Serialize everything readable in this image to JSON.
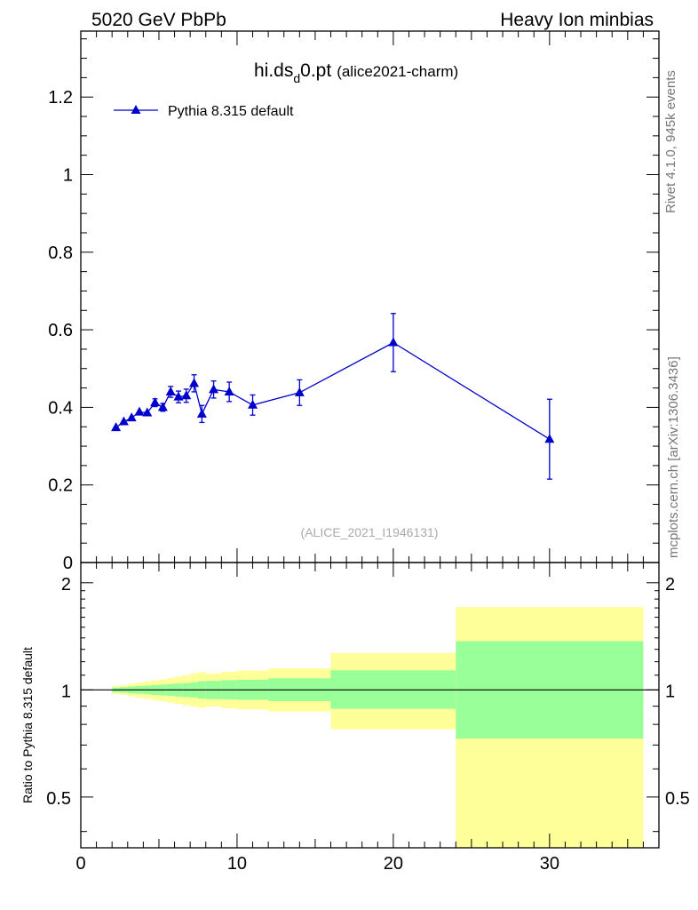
{
  "header": {
    "left": "5020 GeV PbPb",
    "right": "Heavy Ion minbias"
  },
  "side_labels": {
    "rivet": "Rivet 4.1.0,  945k events",
    "mcplots": "mcplots.cern.ch [arXiv:1306.3436]"
  },
  "plot_title": {
    "main_prefix": "hi.ds",
    "subscript": "d",
    "main_suffix": "0.pt",
    "tag": "(alice2021-charm)"
  },
  "watermark": "(ALICE_2021_I1946131)",
  "colors": {
    "series": "#0000cc",
    "band_outer": "#ffff99",
    "band_inner": "#99ff99"
  },
  "chart_data": [
    {
      "type": "line",
      "panel": "main",
      "title": "hi.ds_d0.pt (alice2021-charm)",
      "xlabel": "",
      "ylabel": "",
      "xlim": [
        0,
        37
      ],
      "ylim": [
        0,
        1.37
      ],
      "y_ticks": [
        0,
        0.2,
        0.4,
        0.6,
        0.8,
        1,
        1.2
      ],
      "y_tick_labels": [
        "0",
        "0.2",
        "0.4",
        "0.6",
        "0.8",
        "1",
        "1.2"
      ],
      "legend": "top-left",
      "series": [
        {
          "name": "Pythia 8.315 default",
          "marker": "triangle",
          "x": [
            2.25,
            2.75,
            3.25,
            3.75,
            4.25,
            4.75,
            5.25,
            5.75,
            6.25,
            6.75,
            7.25,
            7.75,
            8.5,
            9.5,
            11,
            14,
            20,
            30
          ],
          "y": [
            0.348,
            0.363,
            0.373,
            0.388,
            0.386,
            0.412,
            0.4,
            0.44,
            0.427,
            0.43,
            0.462,
            0.383,
            0.446,
            0.44,
            0.406,
            0.438,
            0.567,
            0.318
          ],
          "err": [
            0.006,
            0.006,
            0.007,
            0.008,
            0.009,
            0.01,
            0.01,
            0.014,
            0.015,
            0.017,
            0.022,
            0.022,
            0.022,
            0.025,
            0.026,
            0.033,
            0.075,
            0.103
          ]
        }
      ]
    },
    {
      "type": "area",
      "panel": "ratio",
      "ylabel": "Ratio to Pythia 8.315 default",
      "xlabel": "",
      "xlim": [
        0,
        37
      ],
      "ylim": [
        0.36,
        2.28
      ],
      "y_tick_labels": [
        "0.5",
        "1",
        "2"
      ],
      "y_ticks": [
        0.5,
        1,
        2
      ],
      "x_ticks": [
        0,
        10,
        20,
        30
      ],
      "x_tick_labels": [
        "0",
        "10",
        "20",
        "30"
      ],
      "reference": 1,
      "bins": [
        {
          "x0": 2.0,
          "x1": 2.5,
          "inner": [
            0.985,
            1.015
          ],
          "outer": [
            0.975,
            1.025
          ]
        },
        {
          "x0": 2.5,
          "x1": 3.0,
          "inner": [
            0.982,
            1.018
          ],
          "outer": [
            0.968,
            1.032
          ]
        },
        {
          "x0": 3.0,
          "x1": 3.5,
          "inner": [
            0.978,
            1.022
          ],
          "outer": [
            0.96,
            1.04
          ]
        },
        {
          "x0": 3.5,
          "x1": 4.0,
          "inner": [
            0.975,
            1.025
          ],
          "outer": [
            0.952,
            1.048
          ]
        },
        {
          "x0": 4.0,
          "x1": 4.5,
          "inner": [
            0.972,
            1.028
          ],
          "outer": [
            0.944,
            1.056
          ]
        },
        {
          "x0": 4.5,
          "x1": 5.0,
          "inner": [
            0.968,
            1.032
          ],
          "outer": [
            0.936,
            1.064
          ]
        },
        {
          "x0": 5.0,
          "x1": 5.5,
          "inner": [
            0.965,
            1.035
          ],
          "outer": [
            0.93,
            1.07
          ]
        },
        {
          "x0": 5.5,
          "x1": 6.0,
          "inner": [
            0.962,
            1.038
          ],
          "outer": [
            0.922,
            1.08
          ]
        },
        {
          "x0": 6.0,
          "x1": 6.5,
          "inner": [
            0.958,
            1.042
          ],
          "outer": [
            0.914,
            1.09
          ]
        },
        {
          "x0": 6.5,
          "x1": 7.0,
          "inner": [
            0.955,
            1.045
          ],
          "outer": [
            0.906,
            1.1
          ]
        },
        {
          "x0": 7.0,
          "x1": 7.5,
          "inner": [
            0.952,
            1.05
          ],
          "outer": [
            0.898,
            1.112
          ]
        },
        {
          "x0": 7.5,
          "x1": 8.0,
          "inner": [
            0.945,
            1.058
          ],
          "outer": [
            0.89,
            1.122
          ]
        },
        {
          "x0": 8.0,
          "x1": 9.0,
          "inner": [
            0.942,
            1.06
          ],
          "outer": [
            0.898,
            1.112
          ]
        },
        {
          "x0": 9.0,
          "x1": 10.0,
          "inner": [
            0.94,
            1.065
          ],
          "outer": [
            0.888,
            1.125
          ]
        },
        {
          "x0": 10.0,
          "x1": 12.0,
          "inner": [
            0.938,
            1.068
          ],
          "outer": [
            0.882,
            1.133
          ]
        },
        {
          "x0": 12.0,
          "x1": 16.0,
          "inner": [
            0.93,
            1.078
          ],
          "outer": [
            0.87,
            1.15
          ]
        },
        {
          "x0": 16.0,
          "x1": 24.0,
          "inner": [
            0.885,
            1.135
          ],
          "outer": [
            0.775,
            1.27
          ]
        },
        {
          "x0": 24.0,
          "x1": 36.0,
          "inner": [
            0.73,
            1.37
          ],
          "outer": [
            0.36,
            1.71
          ]
        }
      ]
    }
  ],
  "legend": {
    "series_label": "Pythia 8.315 default"
  }
}
